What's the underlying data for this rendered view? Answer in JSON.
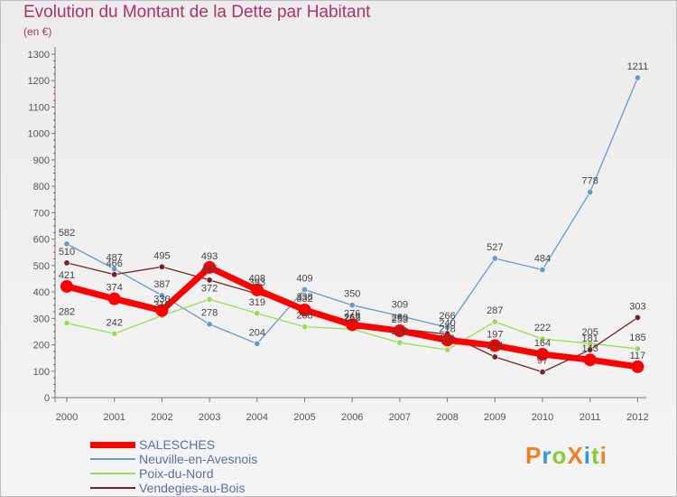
{
  "chart_data": {
    "type": "line",
    "title": "Evolution du Montant de la Dette par Habitant",
    "subtitle": "(en €)",
    "categories": [
      "2000",
      "2001",
      "2002",
      "2003",
      "2004",
      "2005",
      "2006",
      "2007",
      "2008",
      "2009",
      "2010",
      "2011",
      "2012"
    ],
    "ylim": [
      0,
      1300
    ],
    "yticks": [
      0,
      100,
      200,
      300,
      400,
      500,
      600,
      700,
      800,
      900,
      1000,
      1100,
      1200,
      1300
    ],
    "grid": false,
    "legend_position": "bottom-left",
    "series": [
      {
        "name": "SALESCHES",
        "color": "#ff0000",
        "values": [
          421,
          374,
          330,
          493,
          408,
          332,
          276,
          253,
          218,
          197,
          164,
          143,
          117
        ]
      },
      {
        "name": "Neuville-en-Avesnois",
        "color": "#6699cc",
        "values": [
          582,
          487,
          387,
          278,
          204,
          409,
          350,
          309,
          266,
          527,
          484,
          778,
          1211
        ]
      },
      {
        "name": "Poix-du-Nord",
        "color": "#99dd55",
        "values": [
          282,
          242,
          310,
          372,
          319,
          268,
          259,
          208,
          181,
          287,
          222,
          205,
          185
        ]
      },
      {
        "name": "Vendegies-au-Bois",
        "color": "#772222",
        "values": [
          510,
          466,
          495,
          445,
          393,
          338,
          262,
          260,
          240,
          154,
          97,
          181,
          303
        ]
      }
    ]
  },
  "logo": {
    "text": "ProXiti",
    "colors": [
      "#f08020",
      "#3399dd",
      "#88cc33",
      "#f08020",
      "#3399dd",
      "#88cc33",
      "#f08020"
    ]
  }
}
